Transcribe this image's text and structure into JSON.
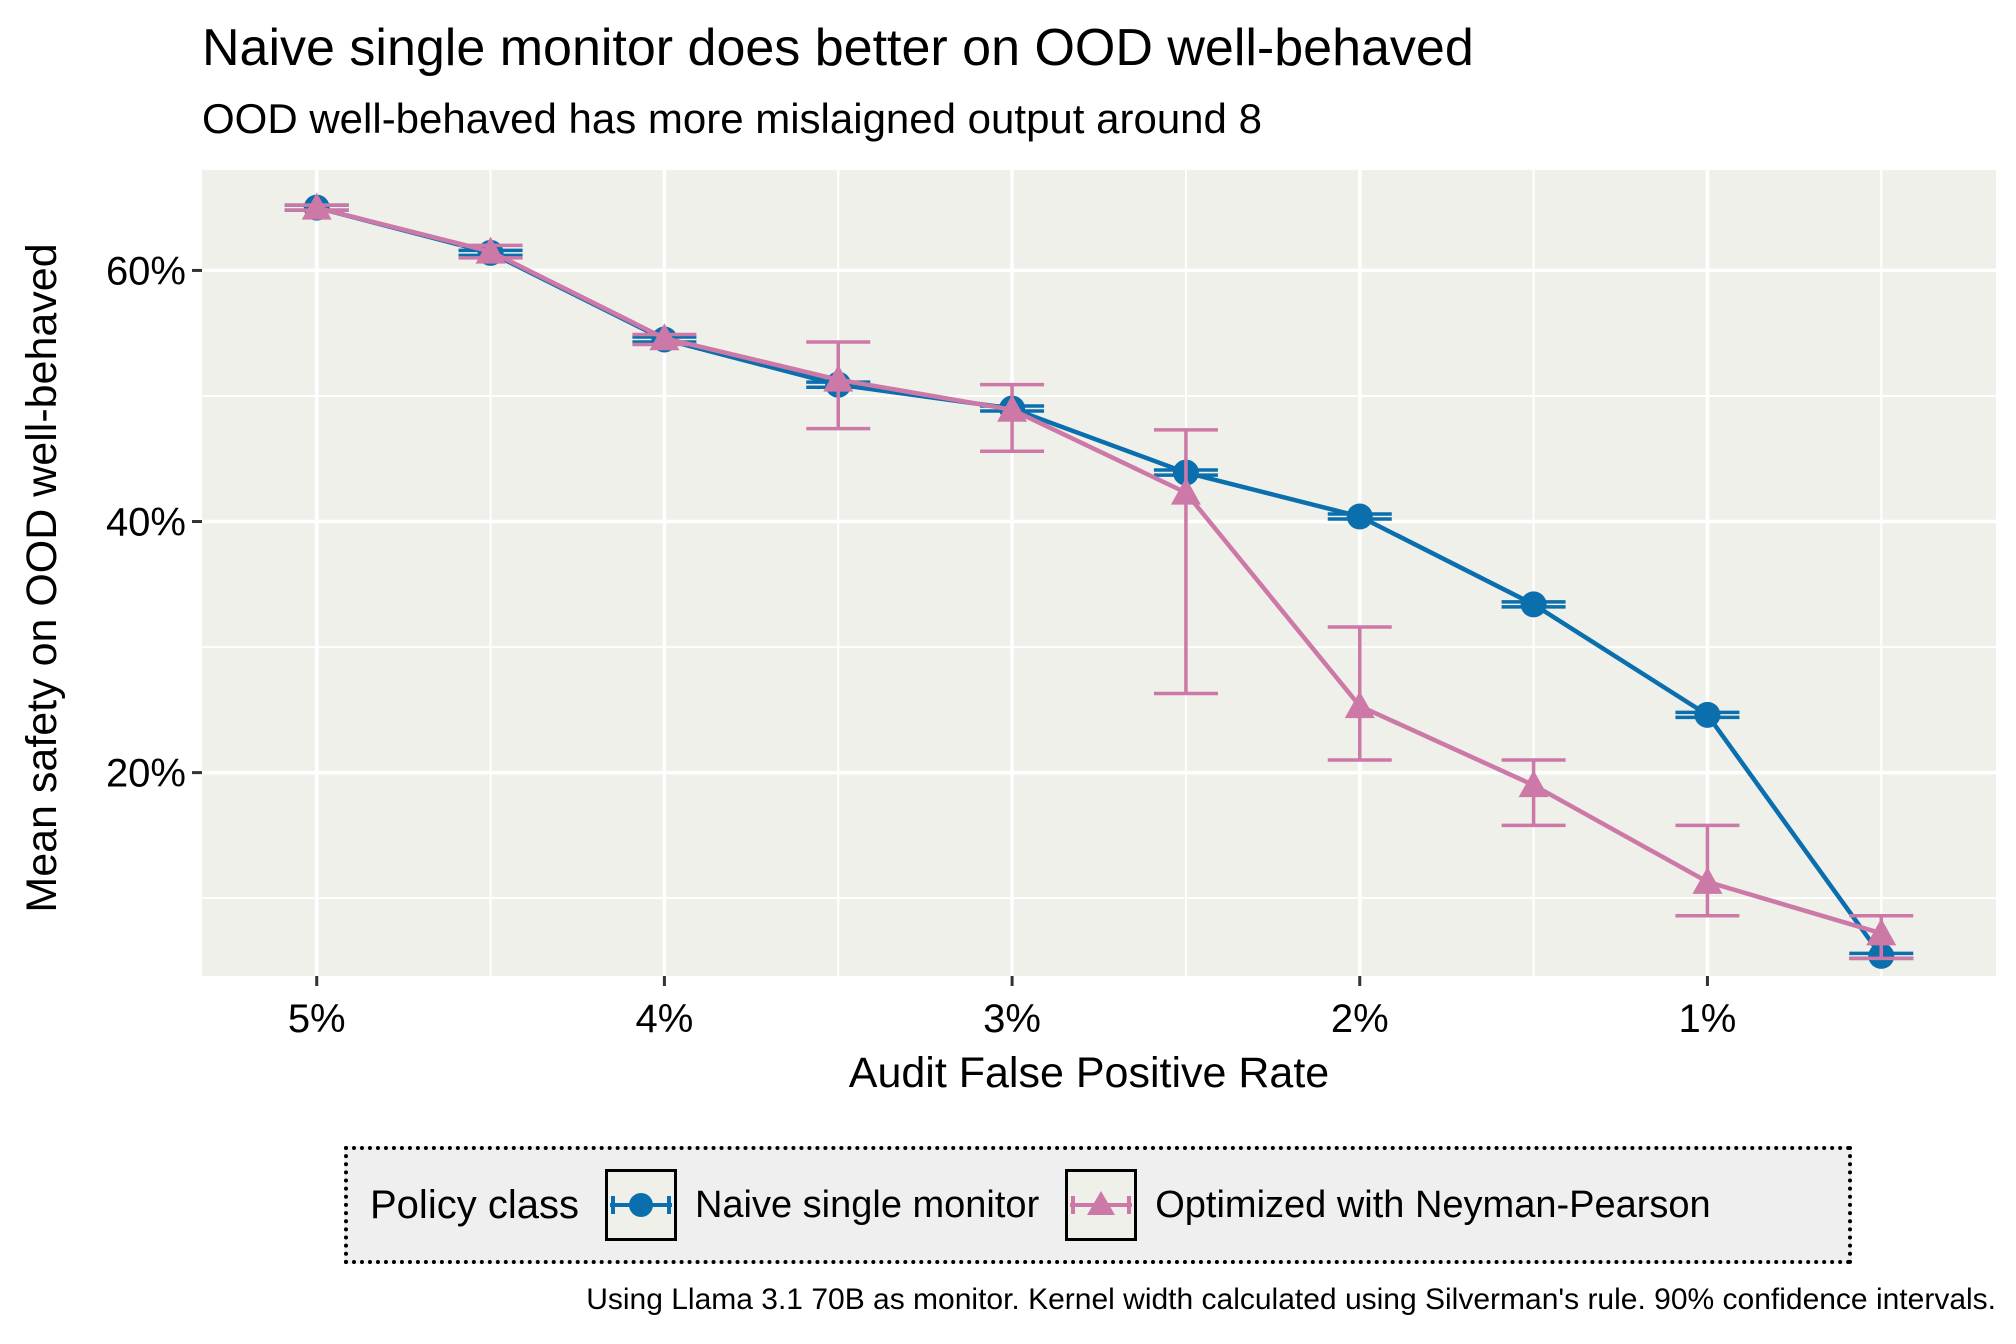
{
  "title": "Naive single monitor does better on OOD well-behaved",
  "subtitle": "OOD well-behaved has more mislaigned output around 8",
  "caption": "Using Llama 3.1 70B as monitor. Kernel width calculated using Silverman's rule. 90% confidence intervals.",
  "colors": {
    "panel_bg": "#f0f0ea",
    "grid": "#ffffff",
    "naive": "#0b6fae",
    "optimized": "#cc79a7"
  },
  "legend": {
    "title": "Policy class",
    "items": [
      {
        "label": "Naive single monitor",
        "marker": "circle"
      },
      {
        "label": "Optimized with Neyman-Pearson",
        "marker": "triangle"
      }
    ]
  },
  "chart_data": {
    "type": "line",
    "xlabel": "Audit False Positive Rate",
    "ylabel": "Mean safety on OOD well-behaved",
    "x_reversed": true,
    "xlim": [
      5.33,
      0.17
    ],
    "ylim": [
      3.8,
      68.0
    ],
    "x_ticks": [
      {
        "value": 5,
        "label": "5%"
      },
      {
        "value": 4,
        "label": "4%"
      },
      {
        "value": 3,
        "label": "3%"
      },
      {
        "value": 2,
        "label": "2%"
      },
      {
        "value": 1,
        "label": "1%"
      }
    ],
    "y_ticks": [
      {
        "value": 20,
        "label": "20%"
      },
      {
        "value": 40,
        "label": "40%"
      },
      {
        "value": 60,
        "label": "60%"
      }
    ],
    "grid": true,
    "legend_position": "bottom",
    "series": [
      {
        "name": "Naive single monitor",
        "marker": "circle",
        "color_key": "naive",
        "points": [
          {
            "x": 5.0,
            "y": 65.0,
            "lo": 64.8,
            "hi": 65.2
          },
          {
            "x": 4.5,
            "y": 61.4,
            "lo": 61.2,
            "hi": 61.6
          },
          {
            "x": 4.0,
            "y": 54.5,
            "lo": 54.3,
            "hi": 54.7
          },
          {
            "x": 3.5,
            "y": 50.9,
            "lo": 50.7,
            "hi": 51.1
          },
          {
            "x": 3.0,
            "y": 49.0,
            "lo": 48.8,
            "hi": 49.2
          },
          {
            "x": 2.5,
            "y": 43.9,
            "lo": 43.7,
            "hi": 44.1
          },
          {
            "x": 2.0,
            "y": 40.4,
            "lo": 40.2,
            "hi": 40.6
          },
          {
            "x": 1.5,
            "y": 33.4,
            "lo": 33.2,
            "hi": 33.6
          },
          {
            "x": 1.0,
            "y": 24.6,
            "lo": 24.4,
            "hi": 24.8
          },
          {
            "x": 0.5,
            "y": 5.4,
            "lo": 5.2,
            "hi": 5.6
          }
        ]
      },
      {
        "name": "Optimized with Neyman-Pearson",
        "marker": "triangle",
        "color_key": "optimized",
        "points": [
          {
            "x": 5.0,
            "y": 65.0,
            "lo": 64.8,
            "hi": 65.2
          },
          {
            "x": 4.5,
            "y": 61.5,
            "lo": 61.0,
            "hi": 62.0
          },
          {
            "x": 4.0,
            "y": 54.6,
            "lo": 54.1,
            "hi": 54.9
          },
          {
            "x": 3.5,
            "y": 51.3,
            "lo": 47.4,
            "hi": 54.3
          },
          {
            "x": 3.0,
            "y": 48.9,
            "lo": 45.6,
            "hi": 50.9
          },
          {
            "x": 2.5,
            "y": 42.3,
            "lo": 26.3,
            "hi": 47.3
          },
          {
            "x": 2.0,
            "y": 25.3,
            "lo": 21.0,
            "hi": 31.6
          },
          {
            "x": 1.5,
            "y": 19.0,
            "lo": 15.8,
            "hi": 21.0
          },
          {
            "x": 1.0,
            "y": 11.3,
            "lo": 8.6,
            "hi": 15.8
          },
          {
            "x": 0.5,
            "y": 7.2,
            "lo": 5.2,
            "hi": 8.6
          }
        ]
      }
    ]
  }
}
